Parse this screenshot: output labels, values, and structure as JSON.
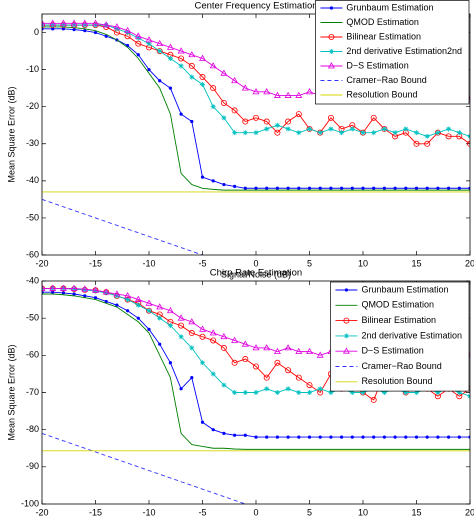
{
  "chart_data": [
    {
      "type": "line",
      "title": "Center Frequency Estimation",
      "xlabel": "Signal/Noise (dB)",
      "ylabel": "Mean Square Error (dB)",
      "xlim": [
        -20,
        20
      ],
      "xticks": [
        -20,
        -15,
        -10,
        -5,
        0,
        5,
        10,
        15,
        20
      ],
      "ylim": [
        -60,
        5
      ],
      "yticks": [
        -60,
        -50,
        -40,
        -30,
        -20,
        -10,
        0
      ],
      "legend": "upper right",
      "x": [
        -20,
        -19,
        -18,
        -17,
        -16,
        -15,
        -14,
        -13,
        -12,
        -11,
        -10,
        -9,
        -8,
        -7,
        -6,
        -5,
        -4,
        -3,
        -2,
        -1,
        0,
        1,
        2,
        3,
        4,
        5,
        6,
        7,
        8,
        9,
        10,
        11,
        12,
        13,
        14,
        15,
        16,
        17,
        18,
        19,
        20
      ],
      "series": [
        {
          "name": "Grunbaum Estimation",
          "color": "#0000ff",
          "marker": "dot",
          "values": [
            1,
            1,
            1,
            0.8,
            0.5,
            0,
            -1,
            -2,
            -3.5,
            -6,
            -10,
            -13,
            -15,
            -22,
            -24,
            -39,
            -40,
            -41,
            -41.5,
            -42,
            -42,
            -42,
            -42,
            -42,
            -42,
            -42,
            -42,
            -42,
            -42,
            -42,
            -42,
            -42,
            -42,
            -42,
            -42,
            -42,
            -42,
            -42,
            -42,
            -42,
            -42
          ]
        },
        {
          "name": "QMOD Estimation",
          "color": "#008000",
          "marker": "none",
          "values": [
            1.5,
            1.5,
            1.5,
            1.3,
            1,
            0.5,
            -0.5,
            -2,
            -4,
            -7,
            -11,
            -15,
            -22,
            -38,
            -41,
            -42,
            -42.3,
            -42.5,
            -42.5,
            -42.5,
            -42.5,
            -42.5,
            -42.5,
            -42.5,
            -42.5,
            -42.5,
            -42.5,
            -42.5,
            -42.5,
            -42.5,
            -42.5,
            -42.5,
            -42.5,
            -42.5,
            -42.5,
            -42.5,
            -42.5,
            -42.5,
            -42.5,
            -42.5,
            -42.5
          ]
        },
        {
          "name": "Bilinear Estimation",
          "color": "#ff0000",
          "marker": "circle",
          "values": [
            2,
            2,
            2,
            2,
            2,
            2,
            1.5,
            0,
            -1,
            -3,
            -4,
            -5,
            -6,
            -7,
            -9,
            -12,
            -15,
            -19,
            -21,
            -24,
            -23,
            -24,
            -27,
            -24,
            -22,
            -26,
            -27,
            -23,
            -26,
            -25,
            -27,
            -23,
            -26,
            -28,
            -27,
            -30,
            -30,
            -27,
            -28,
            -28,
            -30
          ]
        },
        {
          "name": "2nd derivative Estimation2nd",
          "color": "#00c0c0",
          "marker": "star",
          "values": [
            2,
            2,
            2,
            2,
            2,
            2,
            2,
            1,
            0,
            -1.5,
            -3,
            -5,
            -7,
            -9,
            -12,
            -14,
            -20,
            -23,
            -27,
            -27,
            -27,
            -26,
            -25,
            -26,
            -27,
            -26,
            -27,
            -26,
            -27,
            -26,
            -27,
            -27,
            -26,
            -27,
            -26,
            -27,
            -28,
            -27,
            -26,
            -27,
            -28
          ]
        },
        {
          "name": "D−S Estimation",
          "color": "#e000e0",
          "marker": "triangle",
          "values": [
            2.5,
            2.5,
            2.5,
            2.5,
            2.5,
            2.5,
            2,
            1.5,
            0.5,
            -1,
            -2,
            -3,
            -4,
            -5,
            -6,
            -7,
            -9,
            -11,
            -13,
            -15,
            -16,
            -16,
            -17,
            -17,
            -17,
            -16,
            -17,
            -18,
            -17,
            -17,
            -18,
            -17,
            -18,
            -17,
            -17,
            -18,
            -17,
            -18,
            -18,
            -17,
            -18
          ]
        },
        {
          "name": "Cramer−Rao Bound",
          "color": "#3333ff",
          "marker": "none",
          "dash": true,
          "x": [
            -20,
            -5
          ],
          "values": [
            -45,
            -60
          ]
        },
        {
          "name": "Resolution Bound",
          "color": "#d4d400",
          "marker": "none",
          "x": [
            -20,
            20
          ],
          "values": [
            -43,
            -43
          ]
        }
      ]
    },
    {
      "type": "line",
      "title": "Chirp Rate Estimation",
      "xlim": [
        -20,
        20
      ],
      "xticks": [
        -20,
        -15,
        -10,
        -5,
        0,
        5,
        10,
        15,
        20
      ],
      "ylabel": "Mean Square Error (dB)",
      "ylim": [
        -100,
        -40
      ],
      "yticks": [
        -100,
        -90,
        -80,
        -70,
        -60,
        -50,
        -40
      ],
      "legend": "upper right",
      "x": [
        -20,
        -19,
        -18,
        -17,
        -16,
        -15,
        -14,
        -13,
        -12,
        -11,
        -10,
        -9,
        -8,
        -7,
        -6,
        -5,
        -4,
        -3,
        -2,
        -1,
        0,
        1,
        2,
        3,
        4,
        5,
        6,
        7,
        8,
        9,
        10,
        11,
        12,
        13,
        14,
        15,
        16,
        17,
        18,
        19,
        20
      ],
      "series": [
        {
          "name": "Grunbaum Estimation",
          "color": "#0000ff",
          "marker": "dot",
          "values": [
            -43,
            -43,
            -43.2,
            -43.5,
            -44,
            -44.5,
            -45.5,
            -46.5,
            -48,
            -50,
            -53,
            -57,
            -62,
            -69,
            -66,
            -78,
            -80,
            -81,
            -81.5,
            -81.5,
            -82,
            -82,
            -82,
            -82,
            -82,
            -82,
            -82,
            -82,
            -82,
            -82,
            -82,
            -82,
            -82,
            -82,
            -82,
            -82,
            -82,
            -82,
            -82,
            -82,
            -82
          ]
        },
        {
          "name": "QMOD Estimation",
          "color": "#008000",
          "marker": "none",
          "values": [
            -43.5,
            -43.5,
            -43.7,
            -44,
            -44.5,
            -45,
            -46,
            -47,
            -49,
            -51,
            -54,
            -60,
            -66,
            -81,
            -84,
            -84.5,
            -85,
            -85,
            -85.2,
            -85.3,
            -85.3,
            -85.3,
            -85.3,
            -85.3,
            -85.3,
            -85.3,
            -85.3,
            -85.3,
            -85.3,
            -85.3,
            -85.3,
            -85.3,
            -85.3,
            -85.3,
            -85.3,
            -85.3,
            -85.3,
            -85.3,
            -85.3,
            -85.3,
            -85.3
          ]
        },
        {
          "name": "Bilinear Estimation",
          "color": "#ff0000",
          "marker": "circle",
          "values": [
            -42,
            -42,
            -42,
            -42.2,
            -42.4,
            -42.5,
            -43,
            -44,
            -45,
            -46,
            -48,
            -49,
            -51,
            -52,
            -54,
            -55,
            -56,
            -58,
            -62,
            -61,
            -63,
            -66,
            -62,
            -64,
            -66,
            -68,
            -70,
            -65,
            -69,
            -66,
            -70,
            -72,
            -65,
            -68,
            -70,
            -66,
            -69,
            -71,
            -69,
            -71,
            -69
          ]
        },
        {
          "name": "2nd derivative Estimation",
          "color": "#00c0c0",
          "marker": "star",
          "values": [
            -42,
            -42,
            -42,
            -42.2,
            -42.4,
            -42.7,
            -43.2,
            -44,
            -45,
            -46.5,
            -48,
            -50,
            -52,
            -55,
            -58,
            -62,
            -65,
            -68,
            -70,
            -70,
            -70,
            -69,
            -70,
            -69,
            -70,
            -70,
            -69,
            -70,
            -69,
            -70,
            -70,
            -69,
            -70,
            -69,
            -70,
            -70,
            -69,
            -70,
            -69,
            -70,
            -71
          ]
        },
        {
          "name": "D−S Estimation",
          "color": "#e000e0",
          "marker": "triangle",
          "values": [
            -42,
            -42,
            -42,
            -42,
            -42.2,
            -42.5,
            -43,
            -43.5,
            -44,
            -45,
            -46,
            -47,
            -48,
            -50,
            -51,
            -53,
            -54,
            -55,
            -56,
            -57,
            -58,
            -58,
            -59,
            -58,
            -59,
            -59,
            -60,
            -59,
            -60,
            -59,
            -60,
            -60,
            -59,
            -60,
            -60,
            -59,
            -60,
            -60,
            -59,
            -60,
            -60
          ]
        },
        {
          "name": "Cramer−Rao Bound",
          "color": "#3333ff",
          "marker": "none",
          "dash": true,
          "x": [
            -20,
            -1
          ],
          "values": [
            -81,
            -100
          ]
        },
        {
          "name": "Resolution Bound",
          "color": "#d4d400",
          "marker": "none",
          "x": [
            -20,
            20
          ],
          "values": [
            -85.7,
            -85.7
          ]
        }
      ]
    }
  ]
}
